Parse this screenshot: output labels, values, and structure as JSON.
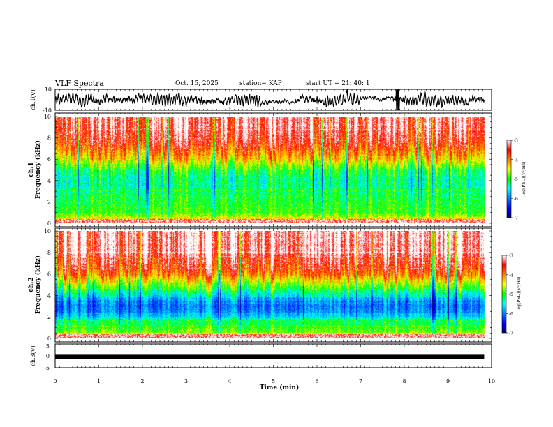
{
  "header": {
    "title": "VLF Spectra",
    "date": "Oct. 15, 2025",
    "station": "station= KAP",
    "start": "start  UT  =   21: 40: 1"
  },
  "chart_data": [
    {
      "name": "ch1-waveform",
      "type": "line",
      "ylabel": "ch.1(V)",
      "ylim": [
        -10,
        10
      ],
      "ytick_labels": [
        "10",
        "-10"
      ],
      "x_end_min": 9.83,
      "description_values": {
        "quiet_segments_min": [
          [
            4.7,
            5.5
          ],
          [
            7.0,
            7.75
          ]
        ],
        "burst_min": 7.85
      }
    },
    {
      "name": "ch1-spectrogram",
      "type": "heatmap",
      "ylabel": "Frequency (kHz)",
      "ylabel_prefix": "ch.1",
      "ylim": [
        0,
        10
      ],
      "ytick_labels": [
        "0",
        "2",
        "4",
        "6",
        "8",
        "10"
      ],
      "colorbar": {
        "label": "log(PSD)(V²/Hz)",
        "range": [
          -7,
          -3
        ],
        "tick_labels": [
          "-3",
          "-4",
          "-5",
          "-6",
          "-7"
        ]
      },
      "band_profile_log_psd": {
        "freq_khz": [
          0,
          0.5,
          1,
          1.5,
          2,
          2.5,
          3,
          3.5,
          4,
          4.5,
          5,
          5.5,
          6,
          7,
          8,
          10
        ],
        "values": [
          -3.6,
          -4.6,
          -4.9,
          -5.0,
          -5.0,
          -5.1,
          -5.2,
          -5.3,
          -5.3,
          -5.2,
          -5.0,
          -4.7,
          -4.3,
          -3.8,
          -3.4,
          -3.2
        ]
      }
    },
    {
      "name": "ch2-spectrogram",
      "type": "heatmap",
      "ylabel": "Frequency (kHz)",
      "ylabel_prefix": "ch.2",
      "ylim": [
        0,
        10
      ],
      "ytick_labels": [
        "0",
        "2",
        "4",
        "6",
        "8",
        "10"
      ],
      "colorbar": {
        "label": "log(PSD)(V²/Hz)",
        "range": [
          -7,
          -3
        ],
        "tick_labels": [
          "-3",
          "-4",
          "-5",
          "-6",
          "-7"
        ]
      },
      "band_profile_log_psd": {
        "freq_khz": [
          0,
          0.5,
          1,
          1.5,
          2,
          2.5,
          3,
          3.5,
          4,
          4.5,
          5,
          5.5,
          6,
          7,
          8,
          10
        ],
        "values": [
          -3.6,
          -4.7,
          -5.0,
          -5.2,
          -5.6,
          -5.9,
          -6.0,
          -5.9,
          -5.5,
          -5.1,
          -4.7,
          -4.3,
          -3.9,
          -3.5,
          -3.2,
          -3.1
        ]
      }
    },
    {
      "name": "ch3-waveform",
      "type": "line",
      "ylabel": "ch.3(V)",
      "ylim": [
        -5,
        5
      ],
      "ytick_labels": [
        "5",
        "0",
        "-5"
      ],
      "level_v": -0.4,
      "x_end_min": 9.83
    }
  ],
  "xaxis": {
    "label": "Time (min)",
    "range": [
      0,
      10
    ],
    "tick_labels": [
      "0",
      "1",
      "2",
      "3",
      "4",
      "5",
      "6",
      "7",
      "8",
      "9",
      "10"
    ]
  }
}
